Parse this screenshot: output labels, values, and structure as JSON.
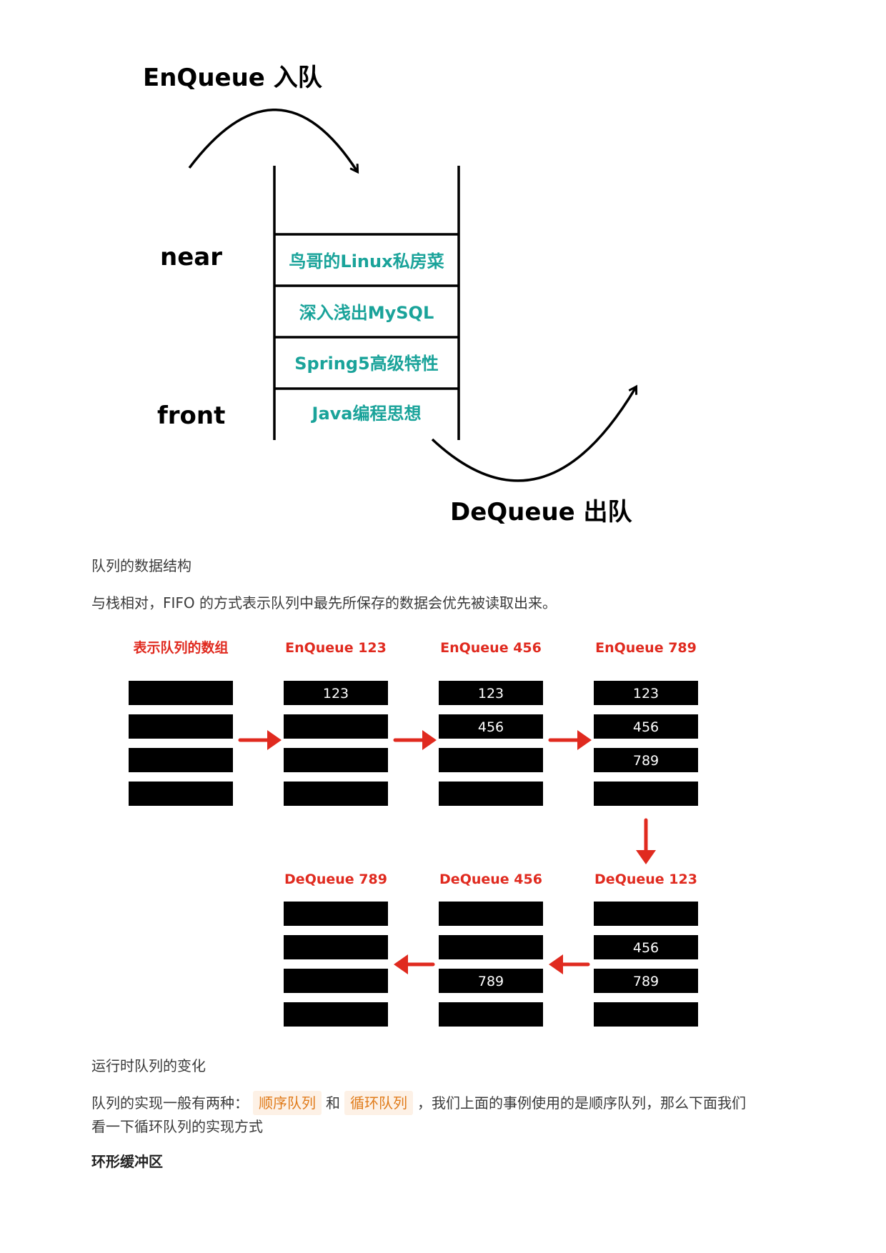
{
  "diagram": {
    "enqueue_label": "EnQueue 入队",
    "dequeue_label": "DeQueue 出队",
    "near_label": "near",
    "front_label": "front",
    "queue_items": [
      "鸟哥的Linux私房菜",
      "深入浅出MySQL",
      "Spring5高级特性",
      "Java编程思想"
    ]
  },
  "caption1": "队列的数据结构",
  "paragraph1": "与栈相对，FIFO 的方式表示队列中最先所保存的数据会优先被读取出来。",
  "array_diagram": {
    "top_row": [
      {
        "title": "表示队列的数组",
        "slots": [
          "",
          "",
          "",
          ""
        ]
      },
      {
        "title": "EnQueue 123",
        "slots": [
          "123",
          "",
          "",
          ""
        ]
      },
      {
        "title": "EnQueue 456",
        "slots": [
          "123",
          "456",
          "",
          ""
        ]
      },
      {
        "title": "EnQueue 789",
        "slots": [
          "123",
          "456",
          "789",
          ""
        ]
      }
    ],
    "bottom_row": [
      {
        "title": "DeQueue 789",
        "slots": [
          "",
          "",
          "",
          ""
        ]
      },
      {
        "title": "DeQueue 456",
        "slots": [
          "",
          "",
          "789",
          ""
        ]
      },
      {
        "title": "DeQueue 123",
        "slots": [
          "",
          "456",
          "789",
          ""
        ]
      }
    ],
    "accent_color": "#e02a1f"
  },
  "caption2": "运行时队列的变化",
  "paragraph2": {
    "prefix": "队列的实现一般有两种：",
    "tag1": "顺序队列",
    "middle": "和",
    "tag2": "循环队列",
    "suffix": "，我们上面的事例使用的是顺序队列，那么下面我们",
    "line2": "看一下循环队列的实现方式"
  },
  "heading": "环形缓冲区"
}
